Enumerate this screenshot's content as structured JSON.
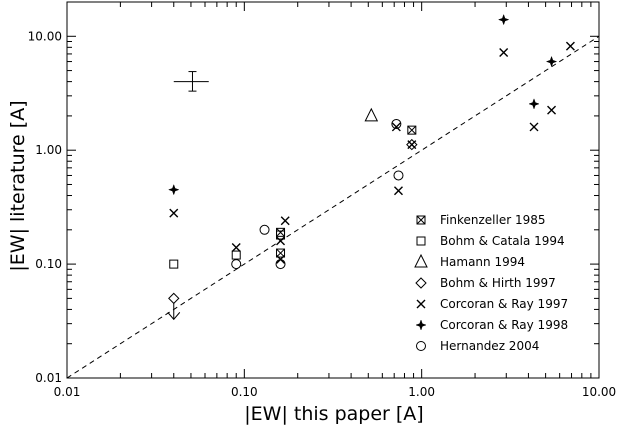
{
  "chart_data": {
    "type": "scatter",
    "xlabel": "|EW| this paper [A]",
    "ylabel": "|EW| literature [A]",
    "xscale": "log",
    "yscale": "log",
    "xlim": [
      0.01,
      10.0
    ],
    "ylim": [
      0.01,
      20.0
    ],
    "x_ticks": [
      "0.01",
      "0.10",
      "1.00",
      "10.00"
    ],
    "y_ticks": [
      "0.01",
      "0.10",
      "1.00",
      "10.00"
    ],
    "grid": false,
    "legend_position": "lower-right",
    "reference_line": {
      "label": "",
      "style": "dashed",
      "points": [
        [
          0.01,
          0.01
        ],
        [
          10.0,
          10.0
        ]
      ]
    },
    "error_bar_example": {
      "x": 0.051,
      "y": 4.0,
      "x_err": [
        0.04,
        0.063
      ],
      "y_err": [
        3.3,
        4.9
      ]
    },
    "series": [
      {
        "name": "Finkenzeller 1985",
        "marker": "boxed-x",
        "points": [
          [
            0.16,
            0.19
          ],
          [
            0.16,
            0.125
          ],
          [
            0.88,
            1.5
          ]
        ]
      },
      {
        "name": "Bohm & Catala 1994",
        "marker": "square",
        "points": [
          [
            0.04,
            0.1
          ],
          [
            0.09,
            0.12
          ],
          [
            0.16,
            0.18
          ]
        ]
      },
      {
        "name": "Hamann 1994",
        "marker": "triangle",
        "points": [
          [
            0.52,
            2.0
          ]
        ]
      },
      {
        "name": "Bohm & Hirth 1997",
        "marker": "diamond",
        "points": [
          [
            0.04,
            0.05
          ],
          [
            0.88,
            1.12
          ]
        ]
      },
      {
        "name": "Corcoran & Ray 1997",
        "marker": "x",
        "points": [
          [
            0.04,
            0.28
          ],
          [
            0.09,
            0.14
          ],
          [
            0.16,
            0.16
          ],
          [
            0.17,
            0.24
          ],
          [
            0.16,
            0.11
          ],
          [
            0.72,
            1.6
          ],
          [
            0.74,
            0.44
          ],
          [
            0.88,
            1.12
          ],
          [
            2.9,
            7.2
          ],
          [
            4.3,
            1.6
          ],
          [
            5.4,
            2.25
          ],
          [
            6.9,
            8.2
          ]
        ]
      },
      {
        "name": "Corcoran & Ray 1998",
        "marker": "star",
        "points": [
          [
            0.04,
            0.45
          ],
          [
            2.9,
            14.0
          ],
          [
            4.3,
            2.55
          ],
          [
            5.4,
            6.0
          ]
        ]
      },
      {
        "name": "Hernandez 2004",
        "marker": "circle",
        "points": [
          [
            0.09,
            0.1
          ],
          [
            0.13,
            0.2
          ],
          [
            0.16,
            0.1
          ],
          [
            0.72,
            1.7
          ],
          [
            0.74,
            0.6
          ]
        ]
      }
    ],
    "upper_limit": {
      "x": 0.04,
      "y": 0.05,
      "marker": "arrow-down"
    }
  }
}
